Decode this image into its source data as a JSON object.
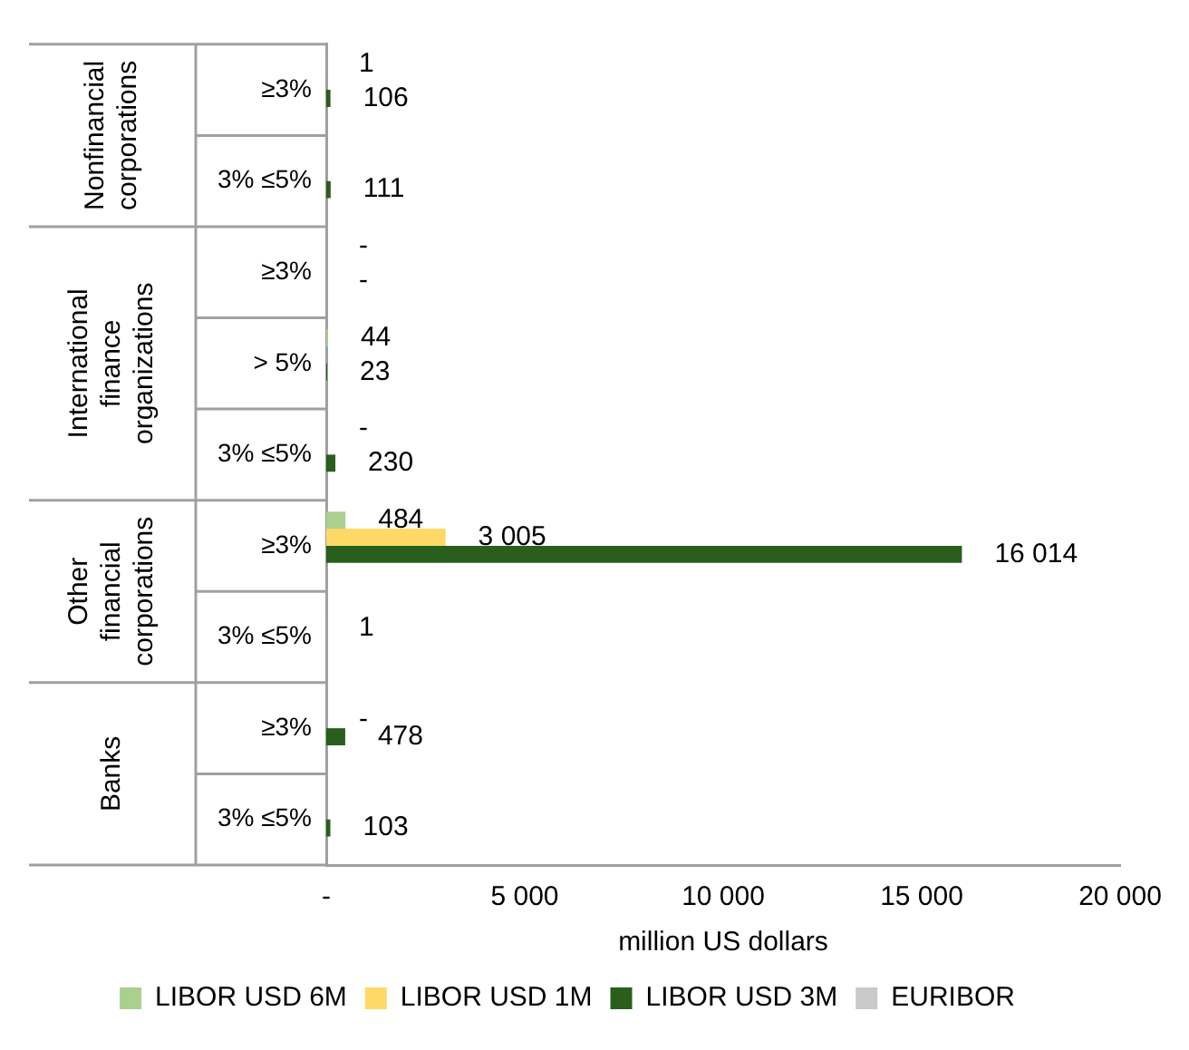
{
  "chart_data": {
    "type": "bar",
    "orientation": "horizontal",
    "xlabel": "million US dollars",
    "categories": [
      "≥3%",
      "3% ≤5%",
      "≥3%",
      "> 5%",
      "3% ≤5%",
      "≥3%",
      "3% ≤5%",
      "≥3%",
      "3% ≤5%"
    ],
    "series": [
      {
        "name": "LIBOR USD 6M",
        "color": "#a9d08e",
        "values": [
          1,
          null,
          0,
          44,
          0,
          484,
          null,
          null,
          null
        ],
        "value_labels": [
          "1",
          null,
          "-",
          "44",
          "-",
          "484",
          null,
          null,
          null
        ]
      },
      {
        "name": "LIBOR USD 1M",
        "color": "#ffd966",
        "values": [
          null,
          null,
          null,
          null,
          null,
          3005,
          1,
          0,
          null
        ],
        "value_labels": [
          null,
          null,
          null,
          null,
          null,
          "3 005",
          "1",
          "-",
          null
        ]
      },
      {
        "name": "LIBOR USD 3M",
        "color": "#2a5e1c",
        "values": [
          106,
          111,
          0,
          23,
          230,
          16014,
          null,
          478,
          103
        ],
        "value_labels": [
          "106",
          "111",
          "-",
          "23",
          "230",
          "16 014",
          null,
          "478",
          "103"
        ]
      },
      {
        "name": "EURIBOR",
        "color": "#c9c9c9",
        "values": [
          null,
          null,
          null,
          null,
          null,
          null,
          null,
          null,
          null
        ]
      }
    ],
    "annotations": [
      "Nonfinancial corporations",
      "International finance organizations",
      "Other financial corporations",
      "Banks"
    ],
    "xlim": [
      0,
      20000
    ],
    "xticks": [
      {
        "value": 0,
        "label": "-"
      },
      {
        "value": 5000,
        "label": "5 000"
      },
      {
        "value": 10000,
        "label": "10 000"
      },
      {
        "value": 15000,
        "label": "15 000"
      },
      {
        "value": 20000,
        "label": "20 000"
      }
    ],
    "grid": false,
    "legend": "bottom"
  }
}
